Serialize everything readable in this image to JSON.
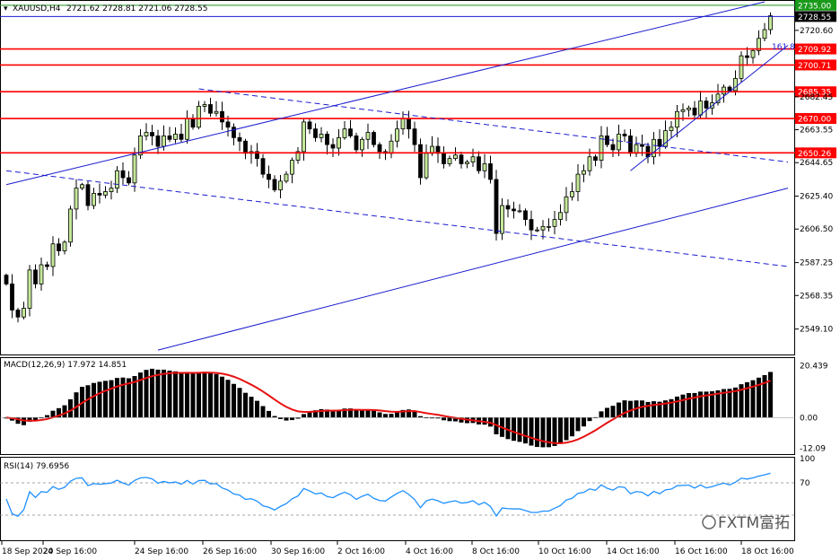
{
  "header": {
    "symbol": "XAUUSD,H4",
    "ohlc": "2721.62 2728.81 2721.06 2728.55"
  },
  "macd_header": "MACD(12,26,9) 17.972 14.851",
  "rsi_header": "RSI(14) 79.6956",
  "watermark": "FXTM富拓",
  "fib_label": "161.8",
  "colors": {
    "up_candle": "#c4e89a",
    "down_candle": "#000000",
    "level_line": "#ff0000",
    "channel_line": "#1b1bcf",
    "macd_signal": "#e81010",
    "rsi_line": "#1e90ff",
    "top_line": "#1a9a1a"
  },
  "chart_data": [
    {
      "type": "candlestick",
      "panel": "price",
      "ylim": [
        2535,
        2737
      ],
      "y_ticks": [
        "2549.10",
        "2568.35",
        "2587.25",
        "2606.50",
        "2625.40",
        "2644.65",
        "2663.55",
        "2682.45",
        "2720.60"
      ],
      "x_labels": [
        "18 Sep 2024",
        "20 Sep 16:00",
        "24 Sep 16:00",
        "26 Sep 16:00",
        "30 Sep 16:00",
        "2 Oct 16:00",
        "4 Oct 16:00",
        "8 Oct 16:00",
        "10 Oct 16:00",
        "14 Oct 16:00",
        "16 Oct 16:00",
        "18 Oct 16:00"
      ],
      "levels": [
        {
          "value": 2735.0,
          "label": "2735.00",
          "color": "#1a9a1a"
        },
        {
          "value": 2728.55,
          "label": "2728.55",
          "color": "#000000"
        },
        {
          "value": 2709.92,
          "label": "2709.92",
          "color": "#ff0000"
        },
        {
          "value": 2700.71,
          "label": "2700.71",
          "color": "#ff0000"
        },
        {
          "value": 2685.35,
          "label": "2685.35",
          "color": "#ff0000"
        },
        {
          "value": 2670.0,
          "label": "2670.00",
          "color": "#ff0000"
        },
        {
          "value": 2650.26,
          "label": "2650.26",
          "color": "#ff0000"
        }
      ],
      "closes": [
        2575,
        2560,
        2556,
        2561,
        2583,
        2575,
        2586,
        2585,
        2598,
        2594,
        2599,
        2618,
        2630,
        2632,
        2620,
        2627,
        2626,
        2628,
        2630,
        2640,
        2636,
        2633,
        2649,
        2660,
        2662,
        2660,
        2654,
        2660,
        2658,
        2661,
        2658,
        2670,
        2665,
        2677,
        2678,
        2673,
        2674,
        2668,
        2665,
        2659,
        2657,
        2650,
        2651,
        2647,
        2638,
        2635,
        2629,
        2634,
        2638,
        2646,
        2651,
        2668,
        2664,
        2659,
        2661,
        2655,
        2653,
        2659,
        2664,
        2660,
        2652,
        2658,
        2662,
        2655,
        2651,
        2650,
        2657,
        2664,
        2670,
        2664,
        2655,
        2636,
        2650,
        2654,
        2650,
        2644,
        2647,
        2649,
        2644,
        2645,
        2648,
        2640,
        2644,
        2635,
        2604,
        2620,
        2618,
        2617,
        2617,
        2612,
        2606,
        2606,
        2608,
        2608,
        2612,
        2616,
        2625,
        2628,
        2638,
        2640,
        2648,
        2646,
        2660,
        2655,
        2652,
        2661,
        2660,
        2650,
        2655,
        2654,
        2648,
        2658,
        2654,
        2663,
        2665,
        2674,
        2675,
        2676,
        2672,
        2680,
        2676,
        2679,
        2684,
        2688,
        2686,
        2693,
        2706,
        2705,
        2709,
        2716,
        2721,
        2729
      ],
      "macd": {
        "ylim": [
          -14,
          23
        ],
        "y_ticks": [
          "20.439",
          "0.00",
          "-12.09"
        ],
        "histogram": "computed from closes (EMA12 - EMA26)",
        "signal": "EMA9 of MACD"
      },
      "rsi": {
        "ylim": [
          0,
          100
        ],
        "y_ticks": [
          "100",
          "70"
        ],
        "levels": [
          70,
          30
        ]
      }
    }
  ]
}
